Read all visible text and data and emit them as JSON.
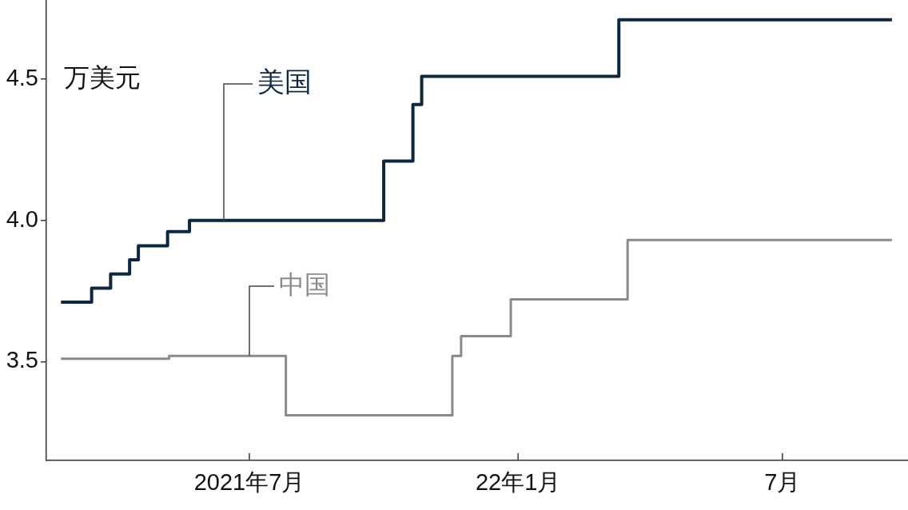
{
  "chart_data": {
    "type": "step",
    "ylabel": "万美元",
    "series": [
      {
        "name": "美国",
        "color": "#0d2742",
        "x": [
          "2021-02-22",
          "2021-03-15",
          "2021-03-28",
          "2021-04-10",
          "2021-04-16",
          "2021-05-06",
          "2021-05-21",
          "2021-10-01",
          "2021-10-21",
          "2021-10-27",
          "2022-03-11",
          "2022-09-14"
        ],
        "values": [
          3.71,
          3.76,
          3.81,
          3.86,
          3.91,
          3.96,
          4.0,
          4.21,
          4.41,
          4.51,
          4.71,
          4.71
        ]
      },
      {
        "name": "中国",
        "color": "#8a8a8a",
        "x": [
          "2021-02-22",
          "2021-05-07",
          "2021-07-26",
          "2021-11-17",
          "2021-11-23",
          "2021-12-27",
          "2022-03-17",
          "2022-09-14"
        ],
        "values": [
          3.51,
          3.52,
          3.31,
          3.52,
          3.59,
          3.72,
          3.93,
          3.93
        ]
      }
    ],
    "xlim": [
      "2021-02-12",
      "2022-09-25"
    ],
    "xticks": [
      {
        "value": "2021-07",
        "label": "2021年7月"
      },
      {
        "value": "2022-01",
        "label": "22年1月"
      },
      {
        "value": "2022-07",
        "label": "7月"
      }
    ],
    "ylim": [
      3.15,
      4.78
    ],
    "yticks": [
      3.5,
      {
        "value": 4,
        "label": "4.0"
      },
      4.5
    ]
  }
}
